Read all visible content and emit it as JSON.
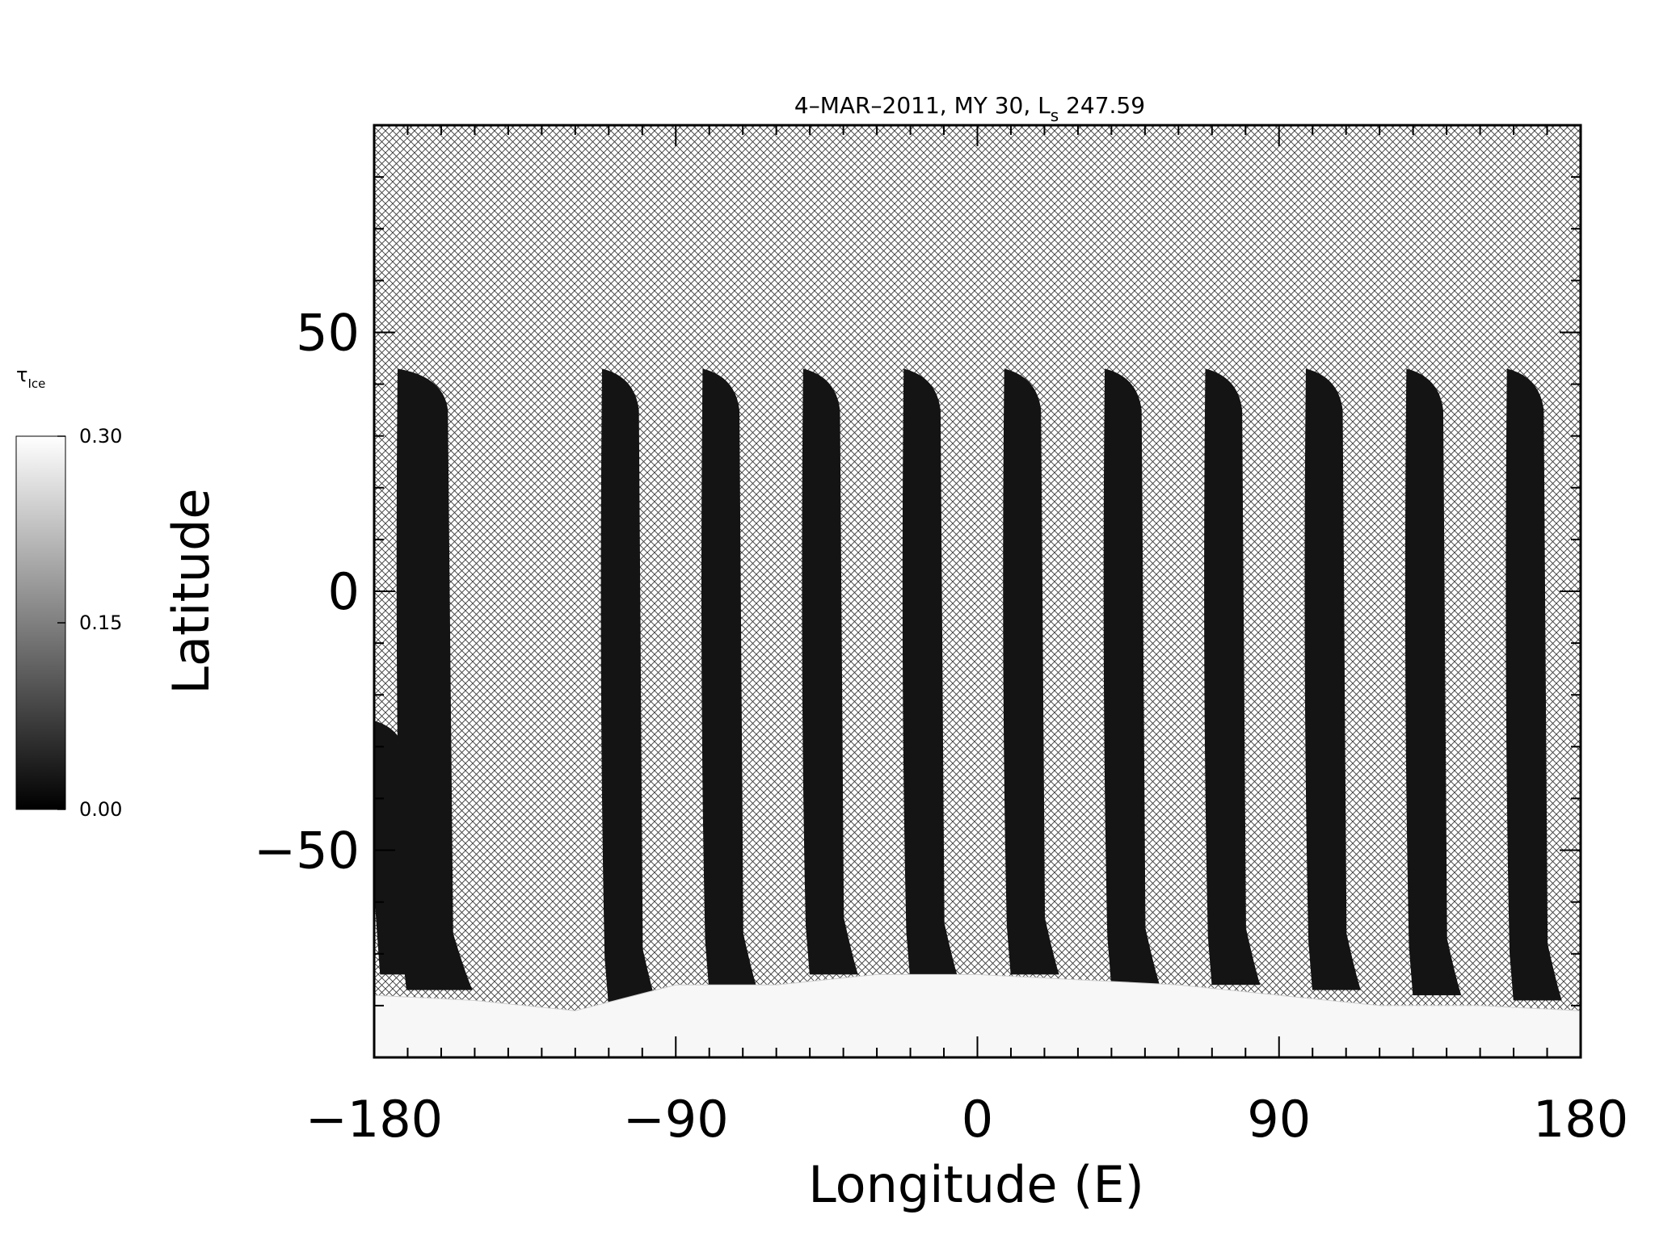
{
  "chart_data": {
    "type": "heatmap",
    "title": "4–MAR–2011, MY 30,  L",
    "title_subscript": "s",
    "title_suffix": " 247.59",
    "xlabel": "Longitude (E)",
    "ylabel": "Latitude",
    "xlim": [
      -180,
      180
    ],
    "ylim": [
      -90,
      90
    ],
    "x_ticks": [
      -180,
      -90,
      0,
      90,
      180
    ],
    "x_tick_labels": [
      "−180",
      "−90",
      "0",
      "90",
      "180"
    ],
    "y_ticks": [
      -50,
      0,
      50
    ],
    "y_tick_labels": [
      "−50",
      "0",
      "50"
    ],
    "x_minor_step": 10,
    "y_minor_step": 10,
    "grid": false,
    "colorscale": "grayscale",
    "no_data_fill": "crosshatch",
    "colorbar": {
      "label_symbol": "τ",
      "label_subscript": "Ice",
      "range": [
        0.0,
        0.3
      ],
      "tick_values": [
        0.0,
        0.15,
        0.3
      ],
      "tick_labels": [
        "0.00",
        "0.15",
        "0.30"
      ],
      "placement": "left"
    },
    "swaths": [
      {
        "lon_top": -173,
        "top_lat": 43,
        "bottom_lat": -77,
        "width": 15
      },
      {
        "lon_top": -112,
        "top_lat": 43,
        "bottom_lat": -80,
        "width": 11
      },
      {
        "lon_top": -82,
        "top_lat": 43,
        "bottom_lat": -77,
        "width": 11
      },
      {
        "lon_top": -52,
        "top_lat": 43,
        "bottom_lat": -74,
        "width": 11
      },
      {
        "lon_top": -22,
        "top_lat": 43,
        "bottom_lat": -75,
        "width": 11
      },
      {
        "lon_top": 8,
        "top_lat": 43,
        "bottom_lat": -74,
        "width": 11
      },
      {
        "lon_top": 38,
        "top_lat": 43,
        "bottom_lat": -76,
        "width": 11
      },
      {
        "lon_top": 68,
        "top_lat": 43,
        "bottom_lat": -76,
        "width": 11
      },
      {
        "lon_top": 98,
        "top_lat": 43,
        "bottom_lat": -77,
        "width": 11
      },
      {
        "lon_top": 128,
        "top_lat": 43,
        "bottom_lat": -78,
        "width": 11
      },
      {
        "lon_top": 158,
        "top_lat": 43,
        "bottom_lat": -79,
        "width": 11
      },
      {
        "lon_top": -180,
        "top_lat": -25,
        "bottom_lat": -74,
        "width": 10
      }
    ],
    "polar_cap": {
      "lon": [
        -180,
        -150,
        -120,
        -90,
        -60,
        -30,
        0,
        30,
        60,
        90,
        120,
        150,
        180
      ],
      "lat_edge": [
        -78,
        -79,
        -81,
        -76,
        -76,
        -74,
        -74,
        -75,
        -76,
        -78,
        -80,
        -80,
        -81
      ],
      "value": 0.3
    }
  }
}
